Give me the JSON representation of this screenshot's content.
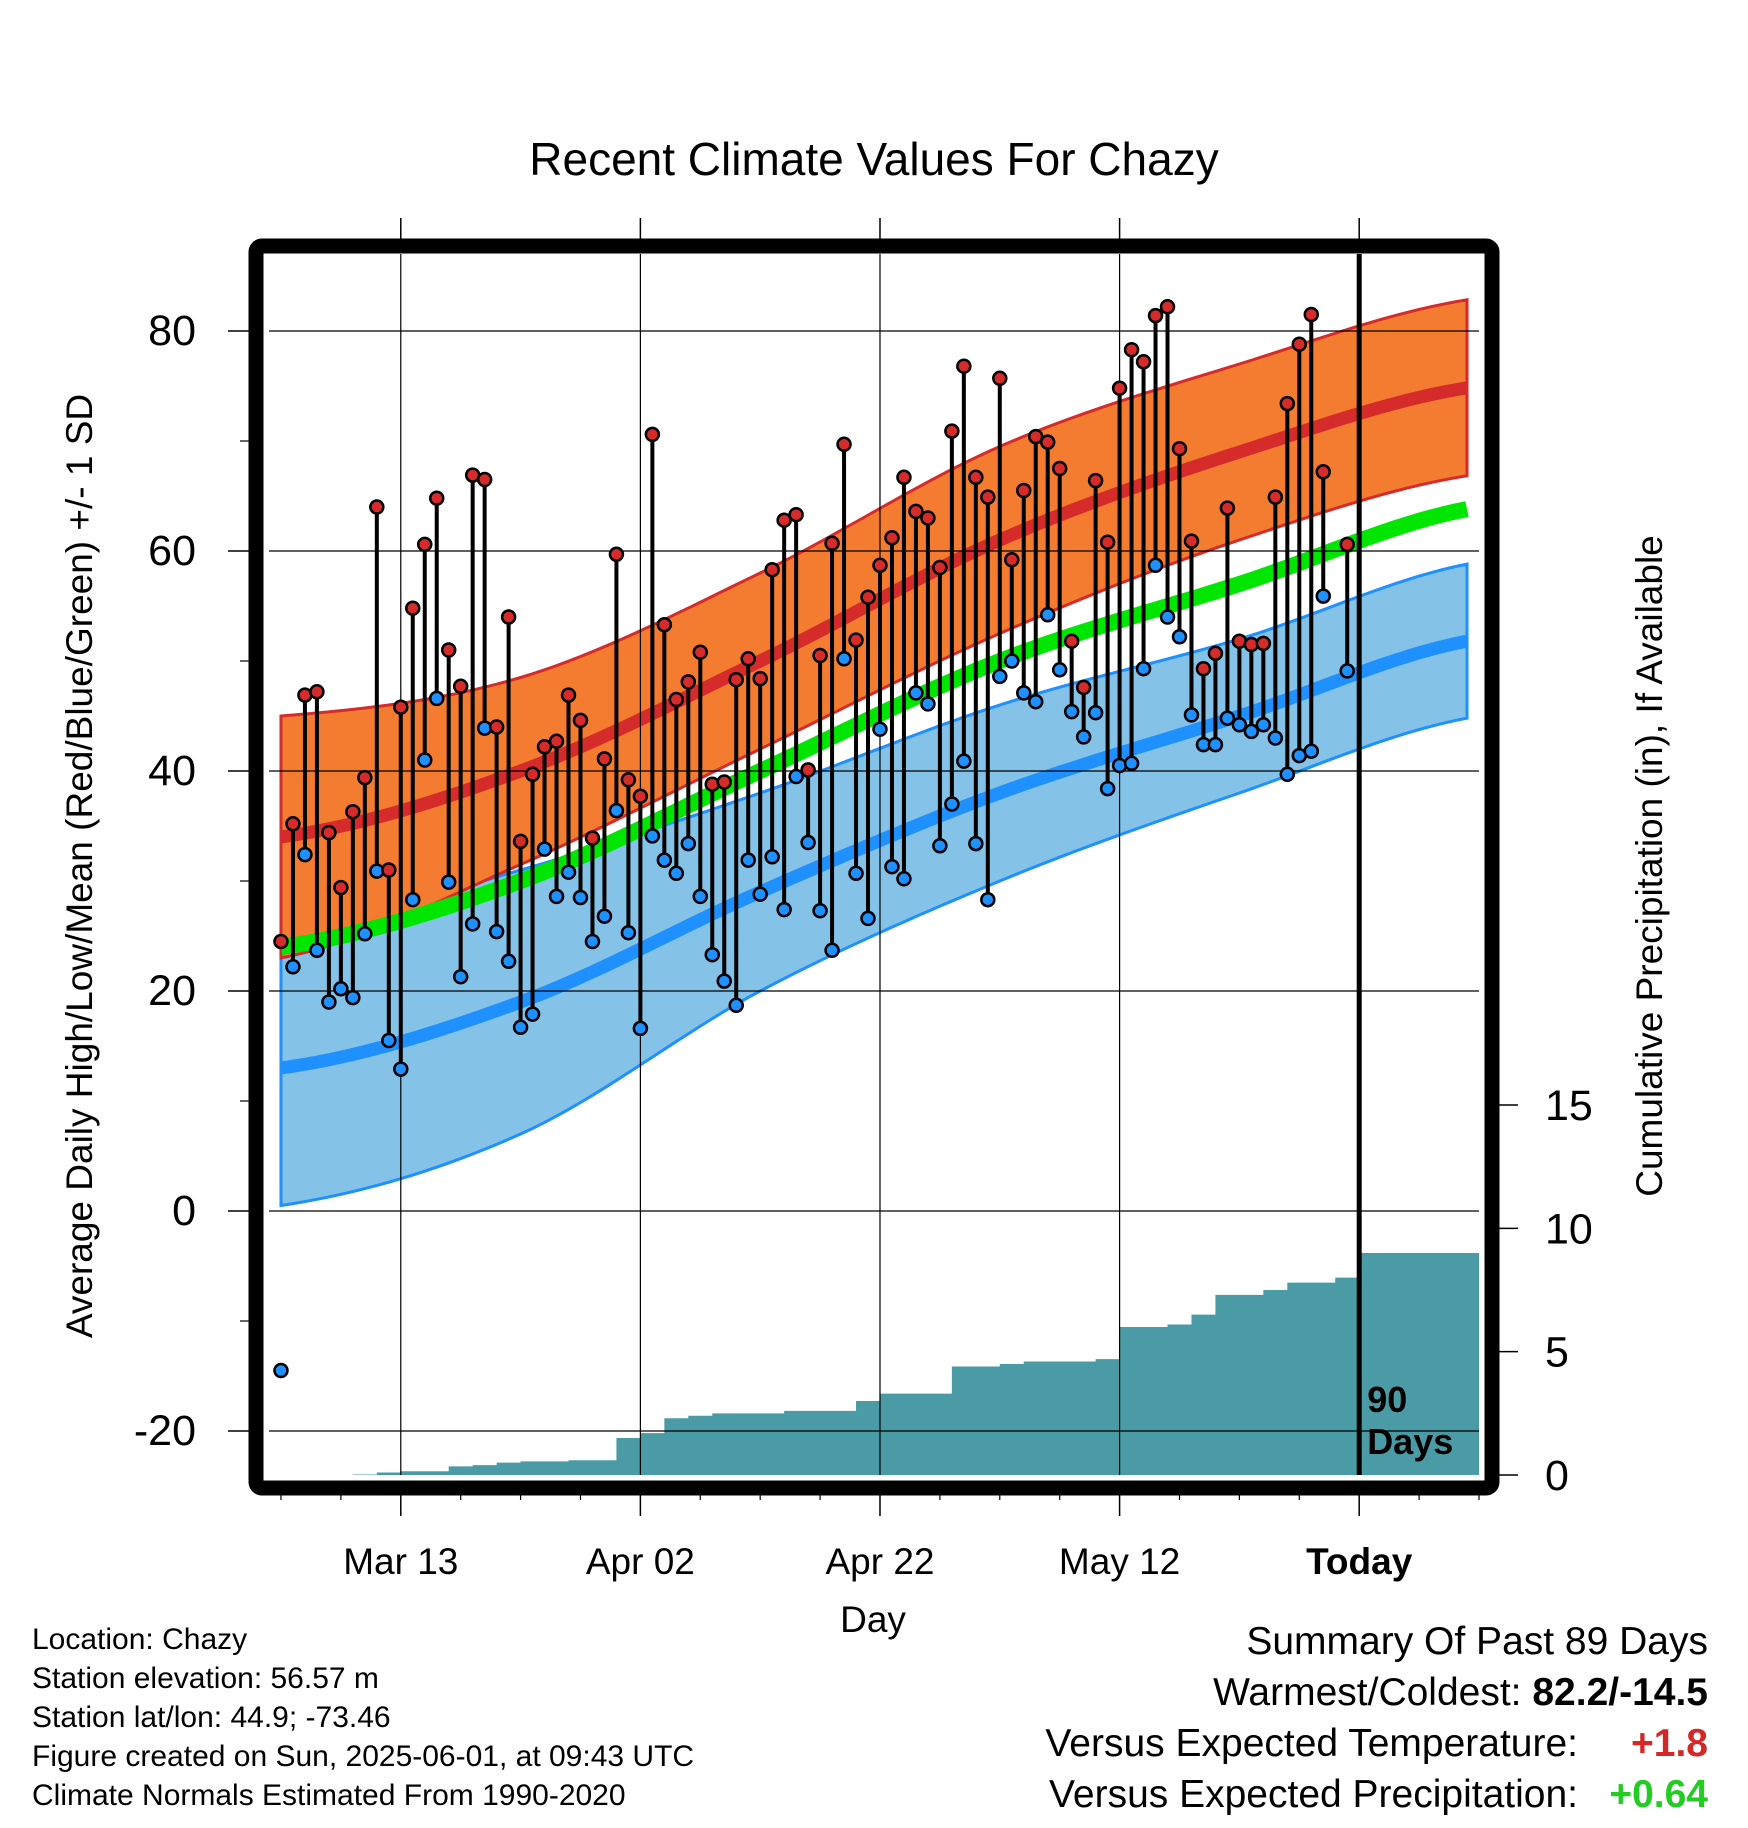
{
  "chart_data": {
    "type": "line",
    "title": "Recent Climate Values For Chazy",
    "xlabel": "Day",
    "ylabel": "Average Daily High/Low/Mean (Red/Blue/Green) +/- 1 SD",
    "y2label": "Cumulative Precipitation (in), If Available",
    "x_tick_labels": [
      "Mar 13",
      "Apr 02",
      "Apr 22",
      "May 12",
      "Today"
    ],
    "x_tick_days": [
      10,
      30,
      50,
      70,
      90
    ],
    "y_ticks": [
      80,
      60,
      40,
      20,
      0,
      -20
    ],
    "y_ticks_text": [
      "80",
      "60",
      "40",
      "20",
      "0",
      "-20"
    ],
    "ylim": [
      -24,
      87
    ],
    "y2_ticks": [
      15,
      10,
      5,
      0
    ],
    "y2_ticks_text": [
      "15",
      "10",
      "5",
      "0"
    ],
    "y2lim": [
      0,
      15
    ],
    "xlim": [
      -1,
      100
    ],
    "today_marker_label": [
      "90",
      "Days"
    ],
    "normals": {
      "day": [
        0,
        20,
        40,
        60,
        80,
        100
      ],
      "high_mean": [
        34,
        40,
        50,
        61,
        69,
        75
      ],
      "high_sd": [
        11,
        8.5,
        8,
        8.5,
        8,
        8
      ],
      "low_mean": [
        13,
        19,
        29,
        38,
        45,
        52
      ],
      "low_sd": [
        12.5,
        12,
        9,
        8,
        7,
        7
      ],
      "mean": [
        24,
        30,
        40,
        50,
        57,
        64
      ]
    },
    "series": [
      {
        "name": "High",
        "values": [
          24.5,
          35.2,
          46.9,
          47.2,
          34.4,
          29.4,
          36.3,
          39.4,
          64,
          31,
          45.8,
          54.8,
          60.6,
          64.8,
          51,
          47.7,
          66.9,
          66.5,
          44,
          54,
          33.6,
          39.7,
          42.2,
          42.7,
          46.9,
          44.6,
          33.9,
          41.1,
          59.7,
          39.2,
          37.7,
          70.6,
          53.3,
          46.5,
          48.1,
          50.8,
          38.8,
          39,
          48.3,
          50.2,
          48.4,
          58.3,
          62.8,
          63.3,
          40.1,
          50.5,
          60.7,
          69.7,
          51.9,
          55.8,
          58.7,
          61.2,
          66.7,
          63.6,
          63,
          58.5,
          70.9,
          76.8,
          66.7,
          64.9,
          75.7,
          59.2,
          65.5,
          70.4,
          69.9,
          67.5,
          51.8,
          47.6,
          66.4,
          60.8,
          74.8,
          78.3,
          77.2,
          81.4,
          82.2,
          69.3,
          60.9,
          49.3,
          50.7,
          63.9,
          51.8,
          51.5,
          51.6,
          64.9,
          73.4,
          78.8,
          81.5,
          67.2,
          null,
          60.6
        ]
      },
      {
        "name": "Low",
        "values": [
          -14.5,
          22.2,
          32.4,
          23.7,
          19,
          20.2,
          19.4,
          25.2,
          30.9,
          15.5,
          12.9,
          28.3,
          41,
          46.6,
          29.9,
          21.3,
          26.1,
          43.9,
          25.4,
          22.7,
          16.7,
          17.9,
          32.9,
          28.6,
          30.8,
          28.5,
          24.5,
          26.8,
          36.4,
          25.3,
          16.6,
          34.1,
          31.9,
          30.7,
          33.4,
          28.6,
          23.3,
          20.9,
          18.7,
          31.9,
          28.8,
          32.2,
          27.4,
          39.5,
          33.5,
          27.3,
          23.7,
          50.2,
          30.7,
          26.6,
          43.8,
          31.3,
          30.2,
          47.1,
          46.1,
          33.2,
          37,
          40.9,
          33.4,
          28.3,
          48.6,
          50,
          47.1,
          46.3,
          54.2,
          49.2,
          45.4,
          43.1,
          45.3,
          38.4,
          40.5,
          40.7,
          49.3,
          58.7,
          54,
          52.2,
          45.1,
          42.4,
          42.4,
          44.8,
          44.2,
          43.6,
          44.2,
          43,
          39.7,
          41.4,
          41.8,
          55.9,
          null,
          49.1
        ]
      },
      {
        "name": "Cumulative Precipitation",
        "x": [
          6,
          8,
          10,
          12,
          14,
          16,
          18,
          20,
          22,
          24,
          26,
          28,
          30,
          32,
          34,
          36,
          38,
          40,
          42,
          44,
          46,
          48,
          50,
          52,
          54,
          56,
          58,
          60,
          62,
          64,
          66,
          68,
          70,
          72,
          74,
          76,
          78,
          80,
          82,
          84,
          86,
          88,
          90,
          92,
          95
        ],
        "values": [
          0.02,
          0.1,
          0.15,
          0.15,
          0.35,
          0.4,
          0.5,
          0.55,
          0.55,
          0.6,
          0.6,
          1.5,
          1.7,
          2.3,
          2.4,
          2.5,
          2.5,
          2.5,
          2.6,
          2.6,
          2.6,
          3,
          3.3,
          3.3,
          3.3,
          4.4,
          4.4,
          4.5,
          4.6,
          4.6,
          4.6,
          4.7,
          6,
          6,
          6.1,
          6.5,
          7.3,
          7.3,
          7.5,
          7.8,
          7.8,
          8,
          9,
          9,
          9
        ]
      }
    ]
  },
  "footer": {
    "location": "Location: Chazy",
    "elevation": "Station elevation: 56.57 m",
    "latlon": "Station lat/lon: 44.9; -73.46",
    "created": "Figure created on Sun, 2025-06-01, at 09:43 UTC",
    "normals": "Climate Normals Estimated From 1990-2020"
  },
  "summary": {
    "heading": "Summary Of Past 89 Days",
    "warm_cold_label": "Warmest/Coldest: ",
    "warm_cold_value": "82.2/-14.5",
    "temp_label": "Versus Expected Temperature:",
    "temp_value": "+1.8",
    "precip_label": "Versus Expected Precipitation:",
    "precip_value": "+0.64"
  },
  "colors": {
    "high_band": "#f47c30",
    "high_line": "#d52b2b",
    "low_band": "#84c2e8",
    "low_line": "#1e90ff",
    "mean_line": "#00e600",
    "precip_fill": "#4a9ba5",
    "temp_anomaly": "#d62728",
    "precip_anomaly": "#22cc22"
  }
}
